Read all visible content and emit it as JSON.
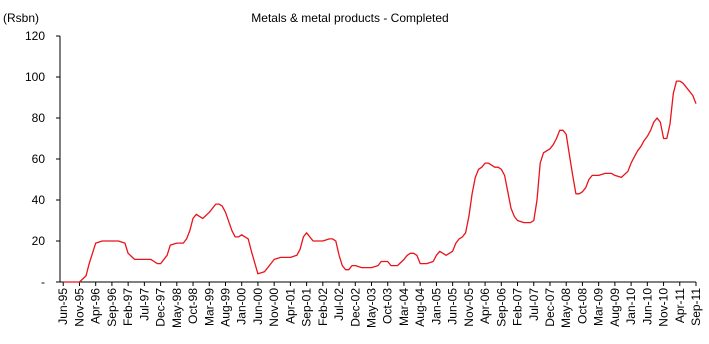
{
  "chart_data": {
    "type": "line",
    "title": "Metals & metal products - Completed",
    "ylabel": "(Rsbn)",
    "xlabel": "",
    "ylim": [
      0,
      120
    ],
    "yticks": [
      0,
      20,
      40,
      60,
      80,
      100,
      120
    ],
    "ytick_labels": [
      "-",
      "20",
      "40",
      "60",
      "80",
      "100",
      "120"
    ],
    "xticks": [
      "Jun-95",
      "Nov-95",
      "Apr-96",
      "Sep-96",
      "Feb-97",
      "Jul-97",
      "Dec-97",
      "May-98",
      "Oct-98",
      "Mar-99",
      "Aug-99",
      "Jan-00",
      "Jun-00",
      "Nov-00",
      "Apr-01",
      "Sep-01",
      "Feb-02",
      "Jul-02",
      "Dec-02",
      "May-03",
      "Oct-03",
      "Mar-04",
      "Aug-04",
      "Jan-05",
      "Jun-05",
      "Nov-05",
      "Apr-06",
      "Sep-06",
      "Feb-07",
      "Jul-07",
      "Dec-07",
      "May-08",
      "Oct-08",
      "Mar-09",
      "Aug-09",
      "Jan-10",
      "Jun-10",
      "Nov-10",
      "Apr-11",
      "Sep-11"
    ],
    "grid": false,
    "line_color": "#e8141b",
    "series": [
      {
        "x": [
          "Jun-95",
          "Nov-95",
          "Jan-96",
          "Feb-96",
          "Apr-96",
          "Jun-96",
          "Aug-96",
          "Sep-96",
          "Nov-96",
          "Jan-97",
          "Feb-97",
          "Apr-97",
          "Jun-97",
          "Jul-97",
          "Sep-97",
          "Oct-97",
          "Nov-97",
          "Dec-97",
          "Feb-98",
          "Mar-98",
          "May-98",
          "Jul-98",
          "Aug-98",
          "Sep-98",
          "Oct-98",
          "Nov-98",
          "Dec-98",
          "Jan-99",
          "Mar-99",
          "May-99",
          "Jun-99",
          "Jul-99",
          "Aug-99",
          "Oct-99",
          "Nov-99",
          "Dec-99",
          "Jan-00",
          "Mar-00",
          "Apr-00",
          "Jun-00",
          "Aug-00",
          "Oct-00",
          "Nov-00",
          "Jan-01",
          "Mar-01",
          "Apr-01",
          "Jun-01",
          "Jul-01",
          "Aug-01",
          "Sep-01",
          "Nov-01",
          "Jan-02",
          "Feb-02",
          "Apr-02",
          "May-02",
          "Jun-02",
          "Jul-02",
          "Aug-02",
          "Sep-02",
          "Oct-02",
          "Nov-02",
          "Dec-02",
          "Feb-03",
          "Apr-03",
          "May-03",
          "Jul-03",
          "Aug-03",
          "Oct-03",
          "Nov-03",
          "Jan-04",
          "Mar-04",
          "Apr-04",
          "May-04",
          "Jun-04",
          "Jul-04",
          "Aug-04",
          "Oct-04",
          "Dec-04",
          "Jan-05",
          "Feb-05",
          "Apr-05",
          "Jun-05",
          "Jul-05",
          "Aug-05",
          "Sep-05",
          "Oct-05",
          "Nov-05",
          "Dec-05",
          "Jan-06",
          "Feb-06",
          "Mar-06",
          "Apr-06",
          "May-06",
          "Jun-06",
          "Jul-06",
          "Aug-06",
          "Sep-06",
          "Oct-06",
          "Nov-06",
          "Dec-06",
          "Jan-07",
          "Feb-07",
          "Apr-07",
          "Jun-07",
          "Jul-07",
          "Aug-07",
          "Sep-07",
          "Oct-07",
          "Nov-07",
          "Dec-07",
          "Jan-08",
          "Feb-08",
          "Mar-08",
          "Apr-08",
          "May-08",
          "Jun-08",
          "Jul-08",
          "Aug-08",
          "Sep-08",
          "Oct-08",
          "Nov-08",
          "Dec-08",
          "Jan-09",
          "Mar-09",
          "May-09",
          "Jun-09",
          "Jul-09",
          "Aug-09",
          "Oct-09",
          "Dec-09",
          "Jan-10",
          "Feb-10",
          "Mar-10",
          "Apr-10",
          "May-10",
          "Jun-10",
          "Jul-10",
          "Aug-10",
          "Sep-10",
          "Oct-10",
          "Nov-10",
          "Dec-10",
          "Jan-11",
          "Feb-11",
          "Mar-11",
          "Apr-11",
          "May-11",
          "Jun-11",
          "Jul-11",
          "Aug-11",
          "Sep-11"
        ],
        "values": [
          0,
          0,
          3,
          9,
          19,
          20,
          20,
          20,
          20,
          19,
          14,
          11,
          11,
          11,
          11,
          10,
          9,
          9,
          13,
          18,
          19,
          19,
          21,
          25,
          31,
          33,
          32,
          31,
          34,
          38,
          38,
          37,
          34,
          25,
          22,
          22,
          23,
          21,
          15,
          4,
          5,
          9,
          11,
          12,
          12,
          12,
          13,
          16,
          22,
          24,
          20,
          20,
          20,
          21,
          21,
          20,
          13,
          8,
          6,
          6,
          8,
          8,
          7,
          7,
          7,
          8,
          10,
          10,
          8,
          8,
          11,
          13,
          14,
          14,
          13,
          9,
          9,
          10,
          13,
          15,
          13,
          15,
          19,
          21,
          22,
          24,
          32,
          43,
          51,
          55,
          56,
          58,
          58,
          57,
          56,
          56,
          55,
          52,
          44,
          36,
          32,
          30,
          29,
          29,
          30,
          40,
          58,
          63,
          64,
          65,
          67,
          70,
          74,
          74,
          72,
          62,
          52,
          43,
          43,
          44,
          46,
          50,
          52,
          52,
          53,
          53,
          53,
          52,
          51,
          54,
          58,
          61,
          64,
          66,
          69,
          71,
          74,
          78,
          80,
          78,
          70,
          70,
          77,
          92,
          98,
          98,
          97,
          95,
          93,
          91,
          87
        ]
      }
    ]
  }
}
